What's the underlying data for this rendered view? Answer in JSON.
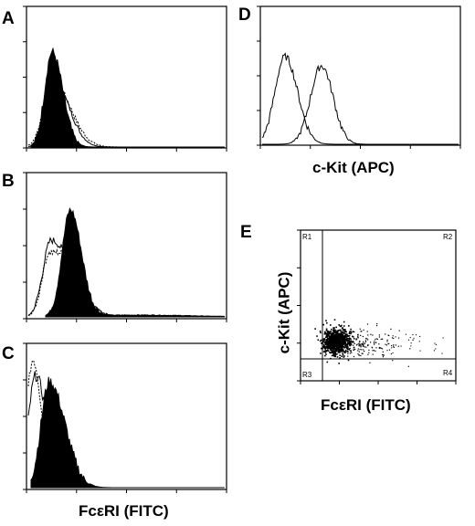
{
  "panels": [
    {
      "letter": "A",
      "type": "histogram",
      "overlay": "filled-black-over-outline"
    },
    {
      "letter": "B",
      "type": "histogram",
      "overlay": "filled-black-right-of-outline"
    },
    {
      "letter": "C",
      "type": "histogram",
      "overlay": "filled-black-with-dotted-outline"
    },
    {
      "letter": "D",
      "type": "histogram",
      "overlay": "two-open-outlines"
    },
    {
      "letter": "E",
      "type": "dot-plot",
      "quadrants": [
        "R1",
        "R2",
        "R3",
        "R4"
      ]
    }
  ],
  "axis_labels": {
    "left_x": "FcεRI (FITC)",
    "d_x": "c-Kit (APC)",
    "e_x": "FcεRI (FITC)",
    "e_y": "c-Kit  (APC)"
  },
  "colors": {
    "fill": "#000000",
    "line": "#000000",
    "background": "#ffffff"
  }
}
